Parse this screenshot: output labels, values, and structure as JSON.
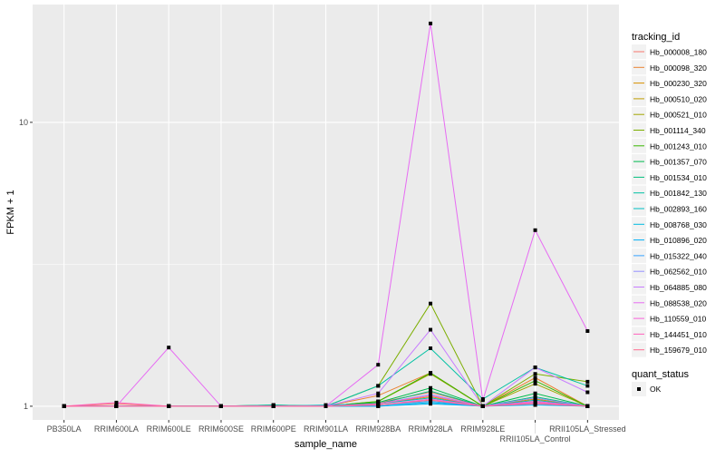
{
  "chart_data": {
    "type": "line",
    "xlabel": "sample_name",
    "ylabel": "FPKM + 1",
    "y_scale": "log10",
    "ylim": [
      0.895,
      26.0
    ],
    "y_ticks": [
      1,
      10
    ],
    "y_tick_labels": [
      "1",
      "10"
    ],
    "grid": true,
    "legend_position": "right",
    "categories": [
      "PB350LA",
      "RRIM600LA",
      "RRIM600LE",
      "RRIM600SE",
      "RRIM600PE",
      "RRIM901LA",
      "RRIM928BA",
      "RRIM928LA",
      "RRIM928LE",
      "RRII105LA_Control",
      "RRII105LA_Stressed"
    ],
    "legend_title": "tracking_id",
    "point_legend_title": "quant_status",
    "point_legend_label": "OK",
    "panel_background": "#EBEBEB",
    "point_color": "#000000",
    "series": [
      {
        "name": "Hb_000008_180",
        "color": "#F8766D",
        "values": [
          1,
          1.02,
          1,
          1,
          1,
          1,
          1.03,
          1.12,
          1,
          1.05,
          1
        ]
      },
      {
        "name": "Hb_000098_320",
        "color": "#EA8331",
        "values": [
          1,
          1,
          1,
          1,
          1,
          1,
          1.09,
          1.31,
          1,
          1.26,
          1
        ]
      },
      {
        "name": "Hb_000230_320",
        "color": "#D89000",
        "values": [
          1,
          1,
          1,
          1,
          1,
          1,
          1.02,
          1.08,
          1,
          1.06,
          1
        ]
      },
      {
        "name": "Hb_000510_020",
        "color": "#C09B00",
        "values": [
          1,
          1,
          1,
          1,
          1,
          1,
          1.01,
          1.05,
          1,
          1.03,
          1
        ]
      },
      {
        "name": "Hb_000521_010",
        "color": "#A3A500",
        "values": [
          1,
          1,
          1,
          1,
          1,
          1,
          1.04,
          1.3,
          1,
          1.2,
          1
        ]
      },
      {
        "name": "Hb_001114_340",
        "color": "#7CAE00",
        "values": [
          1,
          1,
          1,
          1,
          1,
          1,
          1.18,
          2.3,
          1,
          1.3,
          1.22
        ]
      },
      {
        "name": "Hb_001243_010",
        "color": "#39B600",
        "values": [
          1,
          1,
          1,
          1,
          1,
          1,
          1.04,
          1.31,
          1,
          1.23,
          1
        ]
      },
      {
        "name": "Hb_001357_070",
        "color": "#00BB4E",
        "values": [
          1,
          1,
          1,
          1,
          1.01,
          1,
          1.03,
          1.16,
          1,
          1.11,
          1
        ]
      },
      {
        "name": "Hb_001534_010",
        "color": "#00BF7D",
        "values": [
          1,
          1,
          1,
          1,
          1,
          1,
          1.02,
          1.13,
          1,
          1.08,
          1
        ]
      },
      {
        "name": "Hb_001842_130",
        "color": "#00C1A3",
        "values": [
          1,
          1,
          1,
          1,
          1.01,
          1,
          1.18,
          1.6,
          1.06,
          1.37,
          1.18
        ]
      },
      {
        "name": "Hb_002893_160",
        "color": "#00BFC4",
        "values": [
          1,
          1,
          1,
          1,
          1,
          1.01,
          1.02,
          1.07,
          1,
          1.05,
          1
        ]
      },
      {
        "name": "Hb_008768_030",
        "color": "#00BAE0",
        "values": [
          1,
          1,
          1,
          1,
          1,
          1,
          1,
          1.03,
          1,
          1.02,
          1
        ]
      },
      {
        "name": "Hb_010896_020",
        "color": "#00B0F6",
        "values": [
          1,
          1,
          1,
          1,
          1,
          1,
          1,
          1.02,
          1,
          1.01,
          1
        ]
      },
      {
        "name": "Hb_015322_040",
        "color": "#35A2FF",
        "values": [
          1,
          1,
          1,
          1,
          1,
          1,
          1.01,
          1.04,
          1,
          1.03,
          1
        ]
      },
      {
        "name": "Hb_062562_010",
        "color": "#9590FF",
        "values": [
          1,
          1,
          1,
          1,
          1,
          1,
          1.02,
          1.1,
          1,
          1.07,
          1
        ]
      },
      {
        "name": "Hb_064885_080",
        "color": "#C77CFF",
        "values": [
          1,
          1,
          1,
          1,
          1,
          1,
          1.11,
          1.86,
          1,
          1.37,
          1.12
        ]
      },
      {
        "name": "Hb_088538_020",
        "color": "#E76BF3",
        "values": [
          1,
          1,
          1.61,
          1,
          1,
          1,
          1.4,
          22.3,
          1.05,
          4.17,
          1.84
        ]
      },
      {
        "name": "Hb_110559_010",
        "color": "#FA62DB",
        "values": [
          1,
          1,
          1,
          1,
          1,
          1,
          1.01,
          1.06,
          1,
          1.04,
          1
        ]
      },
      {
        "name": "Hb_144451_010",
        "color": "#FF62BC",
        "values": [
          1,
          1.03,
          1,
          1,
          1,
          1,
          1.02,
          1.09,
          1,
          1.03,
          1
        ]
      },
      {
        "name": "Hb_159679_010",
        "color": "#FF6C91",
        "values": [
          1,
          1,
          1,
          1,
          1,
          1,
          1.01,
          1.05,
          1,
          1.02,
          1
        ]
      }
    ]
  }
}
